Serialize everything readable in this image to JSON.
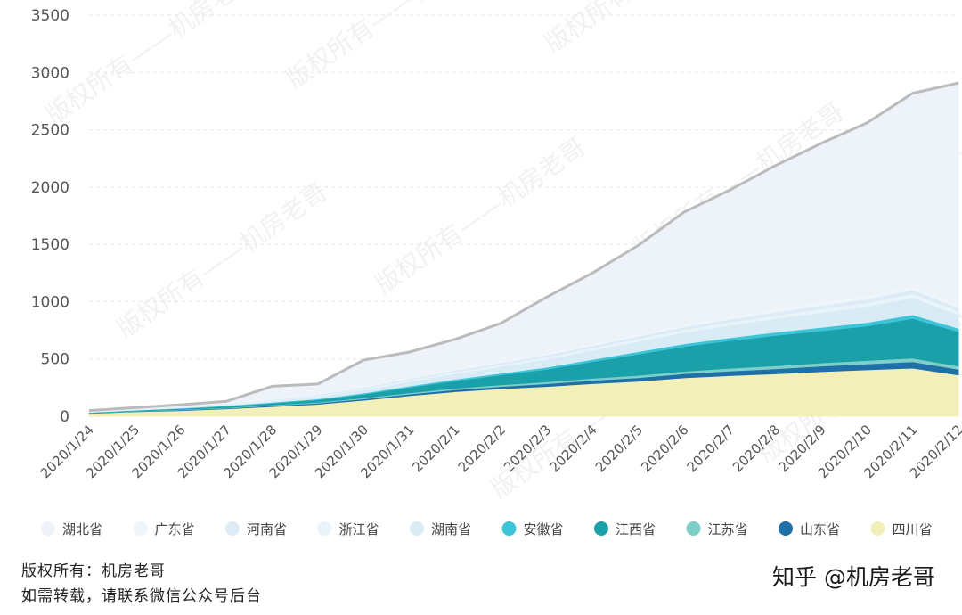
{
  "chart_data": {
    "type": "area",
    "stacked": true,
    "categories": [
      "2020/1/24",
      "2020/1/25",
      "2020/1/26",
      "2020/1/27",
      "2020/1/28",
      "2020/1/29",
      "2020/1/30",
      "2020/1/31",
      "2020/2/1",
      "2020/2/2",
      "2020/2/3",
      "2020/2/4",
      "2020/2/5",
      "2020/2/6",
      "2020/2/7",
      "2020/2/8",
      "2020/2/9",
      "2020/2/10",
      "2020/2/11",
      "2020/2/12"
    ],
    "ylim": [
      0,
      3500
    ],
    "yticks": [
      0,
      500,
      1000,
      1500,
      2000,
      2500,
      3000,
      3500
    ],
    "grid": true,
    "legend_position": "bottom",
    "total_line_color": "#bbbbbb",
    "series": [
      {
        "name": "四川省",
        "color": "#f3efb8",
        "values": [
          25,
          40,
          50,
          65,
          85,
          105,
          140,
          180,
          215,
          240,
          260,
          285,
          305,
          335,
          355,
          370,
          390,
          405,
          420,
          360
        ]
      },
      {
        "name": "山东省",
        "color": "#1f6fa8",
        "values": [
          2,
          3,
          5,
          6,
          8,
          10,
          12,
          14,
          17,
          20,
          24,
          28,
          32,
          36,
          40,
          44,
          48,
          52,
          56,
          50
        ]
      },
      {
        "name": "江苏省",
        "color": "#7ecfc8",
        "values": [
          2,
          3,
          4,
          5,
          6,
          7,
          8,
          10,
          12,
          14,
          16,
          18,
          20,
          22,
          24,
          26,
          28,
          30,
          32,
          28
        ]
      },
      {
        "name": "江西省",
        "color": "#1aa0a8",
        "values": [
          3,
          5,
          8,
          12,
          16,
          22,
          32,
          48,
          65,
          85,
          110,
          145,
          185,
          215,
          240,
          265,
          280,
          300,
          345,
          300
        ]
      },
      {
        "name": "安徽省",
        "color": "#3cc4d8",
        "values": [
          2,
          3,
          4,
          5,
          6,
          8,
          10,
          12,
          14,
          16,
          18,
          20,
          22,
          24,
          26,
          28,
          30,
          32,
          34,
          30
        ]
      },
      {
        "name": "湖南省",
        "color": "#d9ecf6",
        "values": [
          2,
          4,
          6,
          8,
          12,
          20,
          30,
          40,
          50,
          60,
          70,
          80,
          90,
          100,
          110,
          120,
          130,
          140,
          150,
          120
        ]
      },
      {
        "name": "浙江省",
        "color": "#e9f4fa",
        "values": [
          2,
          3,
          4,
          5,
          6,
          8,
          10,
          12,
          14,
          16,
          18,
          20,
          22,
          24,
          26,
          28,
          30,
          32,
          34,
          30
        ]
      },
      {
        "name": "河南省",
        "color": "#dcebf5",
        "values": [
          1,
          2,
          3,
          4,
          6,
          8,
          10,
          12,
          14,
          16,
          18,
          20,
          22,
          24,
          26,
          28,
          30,
          32,
          34,
          30
        ]
      },
      {
        "name": "广东省",
        "color": "#eef6fb",
        "values": [
          1,
          2,
          3,
          4,
          6,
          8,
          10,
          12,
          14,
          16,
          18,
          20,
          22,
          24,
          26,
          28,
          30,
          32,
          34,
          30
        ]
      },
      {
        "name": "湖北省",
        "color": "#eef3f9",
        "values": [
          10,
          10,
          13,
          16,
          110,
          85,
          228,
          220,
          256,
          328,
          488,
          614,
          770,
          976,
          1100,
          1250,
          1385,
          1505,
          1680,
          1930
        ]
      }
    ]
  },
  "legend_order": [
    "湖北省",
    "广东省",
    "河南省",
    "浙江省",
    "湖南省",
    "安徽省",
    "江西省",
    "江苏省",
    "山东省",
    "四川省"
  ],
  "footer": {
    "line1": "版权所有：机房老哥",
    "line2": "如需转载，请联系微信公众号后台"
  },
  "brand": "知乎 @机房老哥",
  "watermark": "版权所有——机房老哥"
}
